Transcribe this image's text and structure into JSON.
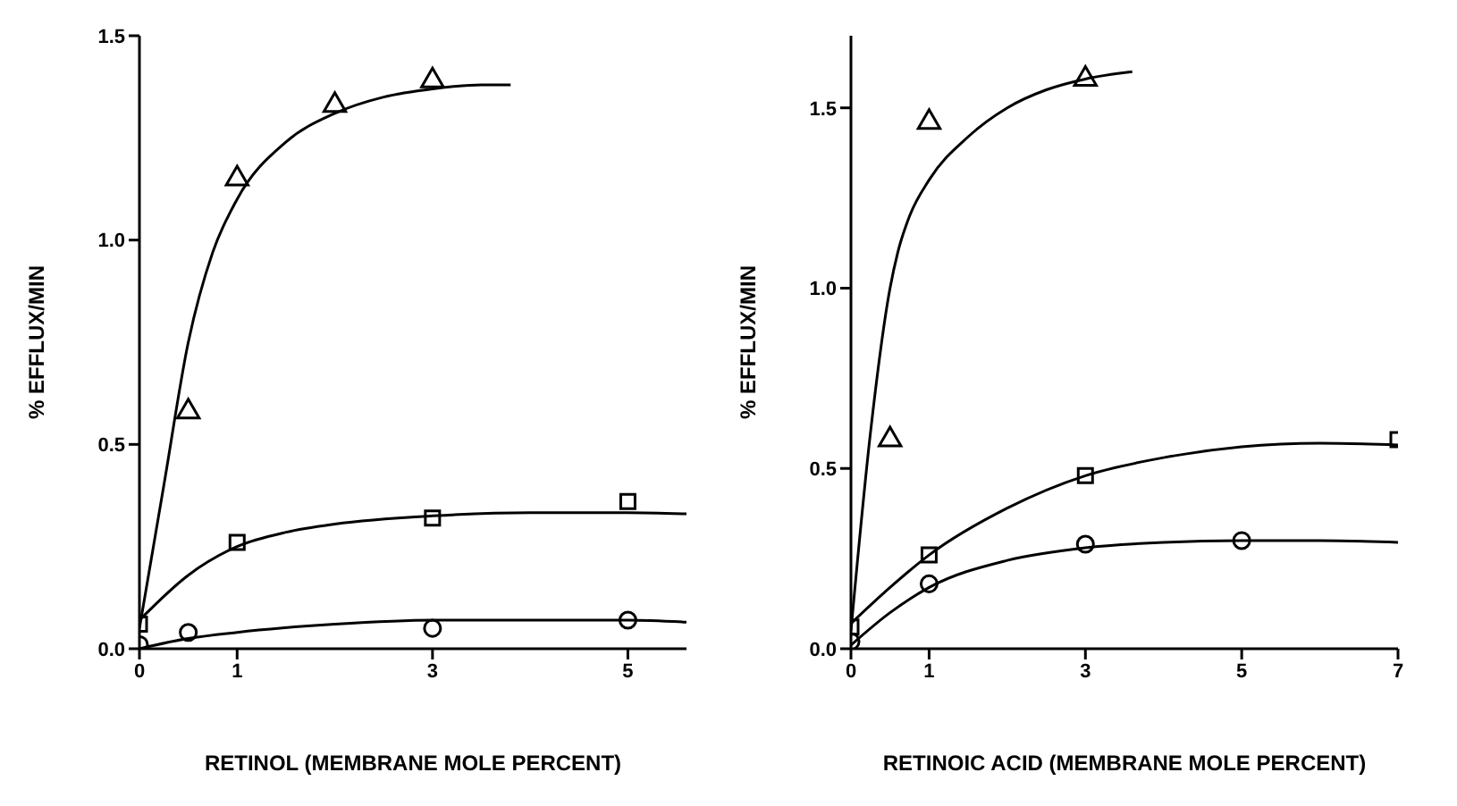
{
  "chart_data": [
    {
      "type": "scatter",
      "xlabel": "RETINOL (MEMBRANE MOLE PERCENT)",
      "ylabel": "% EFFLUX/MIN",
      "xlim": [
        0,
        5.6
      ],
      "xticks": [
        0,
        1,
        3,
        5
      ],
      "ylim": [
        0,
        1.5
      ],
      "yticks": [
        {
          "value": 0,
          "label": "0.0"
        },
        {
          "value": 0.5,
          "label": "0.5"
        },
        {
          "value": 1,
          "label": "1.0"
        },
        {
          "value": 1.5,
          "label": "1.5"
        }
      ],
      "grid": false,
      "legend": false,
      "series": [
        {
          "marker": "triangle",
          "color": "#000000",
          "x": [
            0.5,
            1,
            2,
            3
          ],
          "values": [
            0.58,
            1.15,
            1.33,
            1.39
          ]
        },
        {
          "marker": "square",
          "color": "#000000",
          "x": [
            0,
            1,
            3,
            5
          ],
          "values": [
            0.06,
            0.26,
            0.32,
            0.36
          ]
        },
        {
          "marker": "circle",
          "color": "#000000",
          "x": [
            0,
            0.5,
            3,
            5
          ],
          "values": [
            0.01,
            0.04,
            0.05,
            0.07
          ]
        },
        {
          "type": "line",
          "marker": "none",
          "line_style": "solid",
          "color": "#000000",
          "x": [
            0,
            0.25,
            0.5,
            0.75,
            1,
            1.5,
            2,
            2.5,
            3,
            3.5,
            3.8
          ],
          "values": [
            0.05,
            0.4,
            0.75,
            0.97,
            1.1,
            1.24,
            1.31,
            1.35,
            1.37,
            1.38,
            1.38
          ]
        },
        {
          "type": "line",
          "marker": "none",
          "line_style": "solid",
          "color": "#000000",
          "x": [
            0,
            0.5,
            1,
            1.5,
            2,
            3,
            4,
            5,
            5.6
          ],
          "values": [
            0.07,
            0.18,
            0.25,
            0.285,
            0.305,
            0.325,
            0.333,
            0.333,
            0.33
          ]
        },
        {
          "type": "line",
          "marker": "none",
          "line_style": "solid",
          "color": "#000000",
          "x": [
            0,
            0.5,
            1,
            2,
            3,
            4,
            5,
            5.6
          ],
          "values": [
            0,
            0.025,
            0.04,
            0.06,
            0.07,
            0.07,
            0.07,
            0.065
          ]
        }
      ]
    },
    {
      "type": "scatter",
      "xlabel": "RETINOIC ACID (MEMBRANE MOLE PERCENT)",
      "ylabel": "% EFFLUX/MIN",
      "xlim": [
        0,
        7
      ],
      "xticks": [
        0,
        1,
        3,
        5,
        7
      ],
      "ylim": [
        0,
        1.7
      ],
      "yticks": [
        {
          "value": 0,
          "label": "0.0"
        },
        {
          "value": 0.5,
          "label": "0.5"
        },
        {
          "value": 1,
          "label": "1.0"
        },
        {
          "value": 1.5,
          "label": "1.5"
        }
      ],
      "grid": false,
      "legend": false,
      "series": [
        {
          "marker": "triangle",
          "color": "#000000",
          "x": [
            0.5,
            1,
            3
          ],
          "values": [
            0.58,
            1.46,
            1.58
          ]
        },
        {
          "marker": "square",
          "color": "#000000",
          "x": [
            0,
            1,
            3,
            7
          ],
          "values": [
            0.06,
            0.26,
            0.48,
            0.58
          ]
        },
        {
          "marker": "circle",
          "color": "#000000",
          "x": [
            0,
            1,
            3,
            5
          ],
          "values": [
            0.02,
            0.18,
            0.29,
            0.3
          ]
        },
        {
          "type": "line",
          "marker": "none",
          "line_style": "solid",
          "color": "#000000",
          "x": [
            0,
            0.25,
            0.5,
            0.6,
            0.75,
            1,
            1.5,
            2,
            2.5,
            3,
            3.6
          ],
          "values": [
            0.05,
            0.6,
            1.0,
            1.1,
            1.2,
            1.3,
            1.42,
            1.5,
            1.55,
            1.58,
            1.6
          ]
        },
        {
          "type": "line",
          "marker": "none",
          "line_style": "solid",
          "color": "#000000",
          "x": [
            0,
            0.5,
            1,
            2,
            3,
            4,
            5,
            6,
            7
          ],
          "values": [
            0.07,
            0.17,
            0.26,
            0.39,
            0.48,
            0.53,
            0.56,
            0.57,
            0.565
          ]
        },
        {
          "type": "line",
          "marker": "none",
          "line_style": "solid",
          "color": "#000000",
          "x": [
            0,
            0.5,
            1,
            2,
            3,
            4,
            5,
            6,
            7
          ],
          "values": [
            0.01,
            0.1,
            0.17,
            0.245,
            0.28,
            0.295,
            0.3,
            0.3,
            0.295
          ]
        }
      ]
    }
  ]
}
